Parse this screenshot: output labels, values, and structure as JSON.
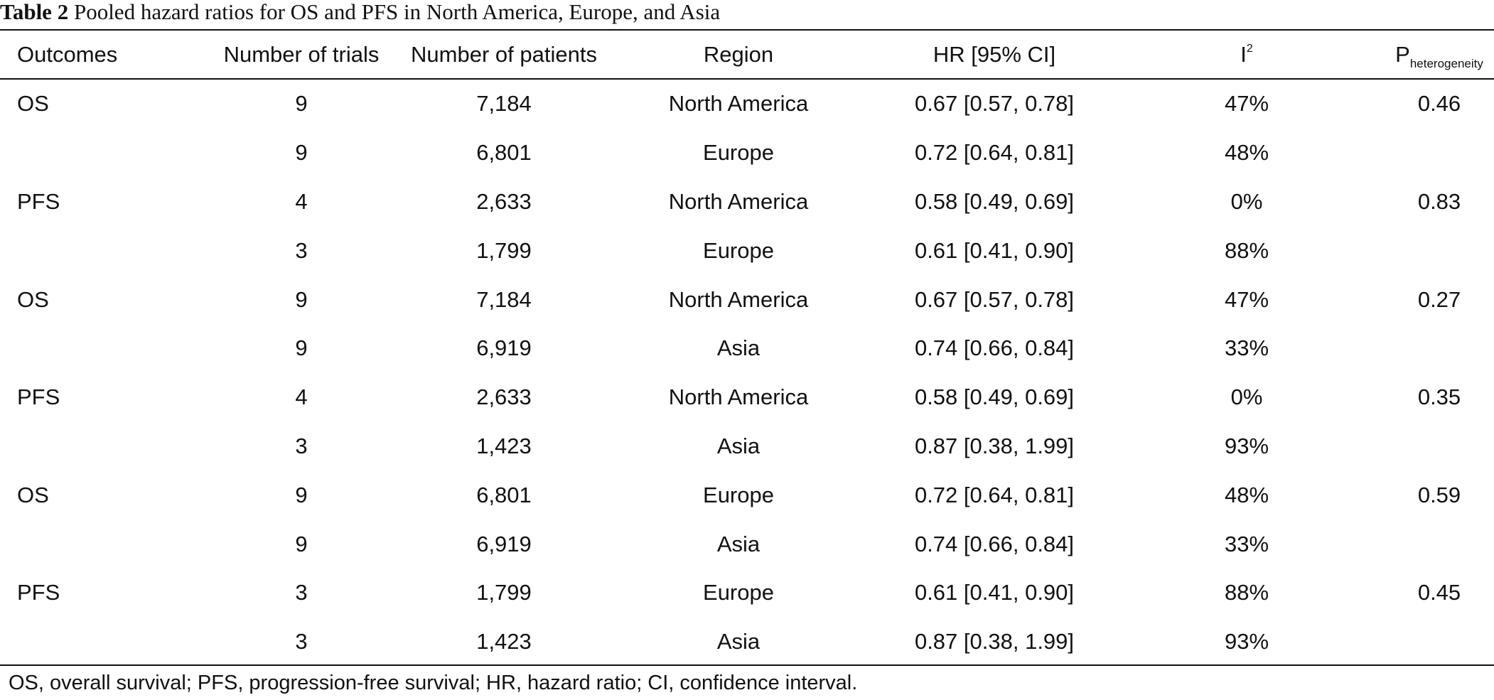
{
  "caption": {
    "label": "Table 2",
    "text": "Pooled hazard ratios for OS and PFS in North America, Europe, and Asia"
  },
  "headers": {
    "outcomes": "Outcomes",
    "trials": "Number of trials",
    "patients": "Number of patients",
    "region": "Region",
    "hr": "HR [95% CI]",
    "i2_base": "I",
    "i2_sup": "2",
    "p_base": "P",
    "p_sub": "heterogeneity"
  },
  "rows": [
    {
      "outcome": "OS",
      "trials": "9",
      "patients": "7,184",
      "region": "North America",
      "hr": "0.67 [0.57, 0.78]",
      "i2": "47%",
      "p": "0.46"
    },
    {
      "outcome": "",
      "trials": "9",
      "patients": "6,801",
      "region": "Europe",
      "hr": "0.72 [0.64, 0.81]",
      "i2": "48%",
      "p": ""
    },
    {
      "outcome": "PFS",
      "trials": "4",
      "patients": "2,633",
      "region": "North America",
      "hr": "0.58 [0.49, 0.69]",
      "i2": "0%",
      "p": "0.83"
    },
    {
      "outcome": "",
      "trials": "3",
      "patients": "1,799",
      "region": "Europe",
      "hr": "0.61 [0.41, 0.90]",
      "i2": "88%",
      "p": ""
    },
    {
      "outcome": "OS",
      "trials": "9",
      "patients": "7,184",
      "region": "North America",
      "hr": "0.67 [0.57, 0.78]",
      "i2": "47%",
      "p": "0.27"
    },
    {
      "outcome": "",
      "trials": "9",
      "patients": "6,919",
      "region": "Asia",
      "hr": "0.74 [0.66, 0.84]",
      "i2": "33%",
      "p": ""
    },
    {
      "outcome": "PFS",
      "trials": "4",
      "patients": "2,633",
      "region": "North America",
      "hr": "0.58 [0.49, 0.69]",
      "i2": "0%",
      "p": "0.35"
    },
    {
      "outcome": "",
      "trials": "3",
      "patients": "1,423",
      "region": "Asia",
      "hr": "0.87 [0.38, 1.99]",
      "i2": "93%",
      "p": ""
    },
    {
      "outcome": "OS",
      "trials": "9",
      "patients": "6,801",
      "region": "Europe",
      "hr": "0.72 [0.64, 0.81]",
      "i2": "48%",
      "p": "0.59"
    },
    {
      "outcome": "",
      "trials": "9",
      "patients": "6,919",
      "region": "Asia",
      "hr": "0.74 [0.66, 0.84]",
      "i2": "33%",
      "p": ""
    },
    {
      "outcome": "PFS",
      "trials": "3",
      "patients": "1,799",
      "region": "Europe",
      "hr": "0.61 [0.41, 0.90]",
      "i2": "88%",
      "p": "0.45"
    },
    {
      "outcome": "",
      "trials": "3",
      "patients": "1,423",
      "region": "Asia",
      "hr": "0.87 [0.38, 1.99]",
      "i2": "93%",
      "p": ""
    }
  ],
  "footnote": "OS, overall survival; PFS, progression-free survival; HR, hazard ratio; CI, confidence interval."
}
